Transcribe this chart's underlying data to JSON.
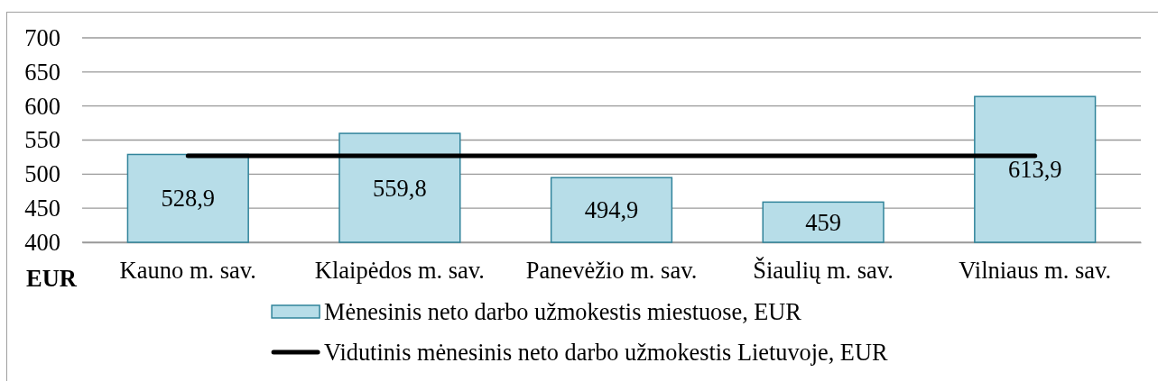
{
  "chart_data": {
    "type": "bar",
    "ylabel": "EUR",
    "categories": [
      "Kauno m. sav.",
      "Klaipėdos m. sav.",
      "Panevėžio m. sav.",
      "Šiaulių m. sav.",
      "Vilniaus m. sav."
    ],
    "series": [
      {
        "name": "Mėnesinis neto darbo užmokestis miestuose, EUR",
        "color": "#b7dde8",
        "values": [
          528.9,
          559.8,
          494.9,
          459,
          613.9
        ],
        "value_labels": [
          "528,9",
          "559,8",
          "494,9",
          "459",
          "613,9"
        ]
      },
      {
        "name": "Vidutinis mėnesinis neto darbo užmokestis Lietuvoje, EUR",
        "type": "line",
        "color": "#000000",
        "values": [
          527,
          527,
          527,
          527,
          527
        ]
      }
    ],
    "ylim": [
      400,
      700
    ],
    "yticks": [
      400,
      450,
      500,
      550,
      600,
      650,
      700
    ],
    "grid": "y",
    "legend": "bottom"
  }
}
